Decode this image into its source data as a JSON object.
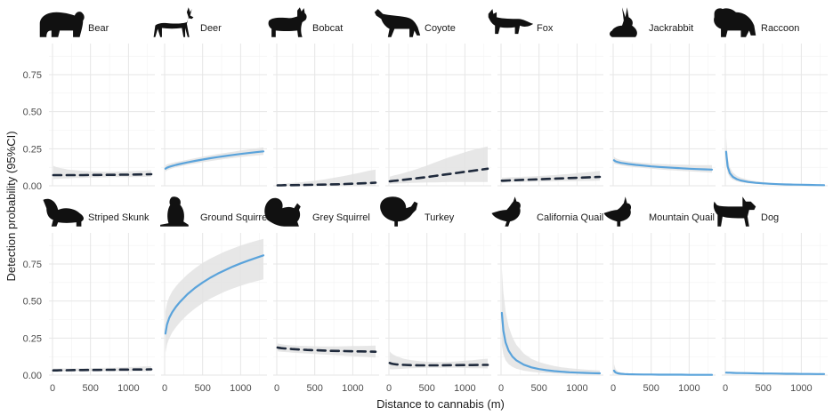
{
  "chart_data": {
    "type": "line",
    "xlabel": "Distance to cannabis (m)",
    "ylabel": "Detection probability (95%CI)",
    "xlim": [
      0,
      1300
    ],
    "ylim": [
      0,
      0.96
    ],
    "x_ticks": [
      "0",
      "500",
      "1000"
    ],
    "x_tick_values": [
      0,
      500,
      1000
    ],
    "y_ticks": [
      "0.00",
      "0.25",
      "0.50",
      "0.75"
    ],
    "y_tick_values": [
      0,
      0.25,
      0.5,
      0.75
    ],
    "grid": true,
    "colors": {
      "significant": "#5aa3db",
      "nonsignificant": "#1f2a3c",
      "ribbon": "#e3e3e3"
    },
    "x": [
      10,
      30,
      60,
      100,
      150,
      200,
      300,
      400,
      500,
      600,
      700,
      800,
      900,
      1000,
      1100,
      1200,
      1300
    ],
    "panels": [
      {
        "name": "Bear",
        "icon": "bear-silhouette-icon",
        "style": "dashed",
        "color": "#1f2a3c",
        "y": [
          0.072,
          0.072,
          0.072,
          0.072,
          0.072,
          0.072,
          0.072,
          0.072,
          0.073,
          0.073,
          0.074,
          0.074,
          0.075,
          0.075,
          0.076,
          0.077,
          0.078
        ],
        "lower": [
          0.045,
          0.046,
          0.047,
          0.048,
          0.049,
          0.05,
          0.052,
          0.053,
          0.055,
          0.056,
          0.057,
          0.058,
          0.058,
          0.059,
          0.059,
          0.06,
          0.06
        ],
        "upper": [
          0.135,
          0.13,
          0.125,
          0.12,
          0.115,
          0.11,
          0.105,
          0.1,
          0.098,
          0.096,
          0.095,
          0.095,
          0.096,
          0.098,
          0.1,
          0.102,
          0.105
        ]
      },
      {
        "name": "Deer",
        "icon": "deer-silhouette-icon",
        "style": "solid",
        "color": "#5aa3db",
        "y": [
          0.115,
          0.122,
          0.128,
          0.134,
          0.141,
          0.147,
          0.158,
          0.168,
          0.177,
          0.186,
          0.194,
          0.201,
          0.208,
          0.215,
          0.221,
          0.227,
          0.232
        ],
        "lower": [
          0.095,
          0.103,
          0.11,
          0.117,
          0.124,
          0.13,
          0.141,
          0.15,
          0.159,
          0.167,
          0.174,
          0.181,
          0.187,
          0.193,
          0.199,
          0.204,
          0.209
        ],
        "upper": [
          0.138,
          0.144,
          0.149,
          0.154,
          0.16,
          0.165,
          0.176,
          0.186,
          0.196,
          0.205,
          0.214,
          0.222,
          0.23,
          0.238,
          0.245,
          0.252,
          0.259
        ]
      },
      {
        "name": "Bobcat",
        "icon": "bobcat-silhouette-icon",
        "style": "dashed",
        "color": "#1f2a3c",
        "y": [
          0.003,
          0.003,
          0.003,
          0.004,
          0.004,
          0.004,
          0.005,
          0.006,
          0.007,
          0.008,
          0.009,
          0.01,
          0.012,
          0.014,
          0.016,
          0.018,
          0.021
        ],
        "lower": [
          0.0,
          0.0,
          0.0,
          0.0,
          0.0,
          0.0,
          0.0,
          0.0,
          0.0,
          0.0,
          0.0,
          0.0,
          0.0,
          0.0,
          0.0,
          0.0,
          0.0
        ],
        "upper": [
          0.012,
          0.013,
          0.014,
          0.015,
          0.017,
          0.019,
          0.023,
          0.028,
          0.034,
          0.041,
          0.049,
          0.058,
          0.068,
          0.078,
          0.089,
          0.1,
          0.11
        ]
      },
      {
        "name": "Coyote",
        "icon": "coyote-silhouette-icon",
        "style": "dashed",
        "color": "#1f2a3c",
        "y": [
          0.03,
          0.031,
          0.033,
          0.035,
          0.038,
          0.041,
          0.047,
          0.053,
          0.059,
          0.066,
          0.073,
          0.08,
          0.087,
          0.094,
          0.101,
          0.108,
          0.115
        ],
        "lower": [
          0.012,
          0.013,
          0.014,
          0.015,
          0.016,
          0.017,
          0.019,
          0.021,
          0.022,
          0.023,
          0.024,
          0.025,
          0.025,
          0.026,
          0.026,
          0.026,
          0.026
        ],
        "upper": [
          0.062,
          0.065,
          0.069,
          0.074,
          0.08,
          0.087,
          0.102,
          0.119,
          0.137,
          0.156,
          0.175,
          0.193,
          0.21,
          0.226,
          0.241,
          0.254,
          0.266
        ]
      },
      {
        "name": "Fox",
        "icon": "fox-silhouette-icon",
        "style": "dashed",
        "color": "#1f2a3c",
        "y": [
          0.034,
          0.034,
          0.035,
          0.036,
          0.037,
          0.038,
          0.04,
          0.042,
          0.044,
          0.046,
          0.048,
          0.05,
          0.052,
          0.054,
          0.056,
          0.058,
          0.06
        ],
        "lower": [
          0.02,
          0.021,
          0.022,
          0.023,
          0.024,
          0.025,
          0.026,
          0.027,
          0.028,
          0.029,
          0.03,
          0.031,
          0.032,
          0.032,
          0.033,
          0.033,
          0.034
        ],
        "upper": [
          0.055,
          0.055,
          0.056,
          0.057,
          0.058,
          0.059,
          0.061,
          0.063,
          0.066,
          0.069,
          0.072,
          0.076,
          0.08,
          0.085,
          0.09,
          0.095,
          0.1
        ]
      },
      {
        "name": "Jackrabbit",
        "icon": "jackrabbit-silhouette-icon",
        "style": "solid",
        "color": "#5aa3db",
        "y": [
          0.172,
          0.165,
          0.16,
          0.155,
          0.151,
          0.147,
          0.141,
          0.136,
          0.131,
          0.127,
          0.124,
          0.121,
          0.118,
          0.115,
          0.113,
          0.111,
          0.109
        ],
        "lower": [
          0.15,
          0.146,
          0.142,
          0.138,
          0.134,
          0.131,
          0.125,
          0.12,
          0.115,
          0.111,
          0.107,
          0.103,
          0.1,
          0.097,
          0.094,
          0.091,
          0.088
        ],
        "upper": [
          0.196,
          0.187,
          0.18,
          0.174,
          0.169,
          0.165,
          0.159,
          0.154,
          0.15,
          0.147,
          0.145,
          0.143,
          0.142,
          0.141,
          0.14,
          0.14,
          0.14
        ]
      },
      {
        "name": "Raccoon",
        "icon": "raccoon-silhouette-icon",
        "style": "solid",
        "color": "#5aa3db",
        "y": [
          0.23,
          0.13,
          0.085,
          0.06,
          0.045,
          0.036,
          0.026,
          0.02,
          0.016,
          0.013,
          0.011,
          0.009,
          0.008,
          0.007,
          0.006,
          0.005,
          0.004
        ],
        "lower": [
          0.15,
          0.085,
          0.057,
          0.04,
          0.03,
          0.024,
          0.017,
          0.013,
          0.01,
          0.008,
          0.007,
          0.006,
          0.005,
          0.004,
          0.004,
          0.003,
          0.003
        ],
        "upper": [
          0.33,
          0.19,
          0.125,
          0.09,
          0.068,
          0.055,
          0.04,
          0.031,
          0.025,
          0.02,
          0.017,
          0.014,
          0.012,
          0.011,
          0.009,
          0.008,
          0.007
        ]
      },
      {
        "name": "Striped Skunk",
        "icon": "striped-skunk-silhouette-icon",
        "style": "dashed",
        "color": "#1f2a3c",
        "y": [
          0.032,
          0.032,
          0.032,
          0.033,
          0.033,
          0.033,
          0.034,
          0.034,
          0.035,
          0.035,
          0.036,
          0.036,
          0.037,
          0.037,
          0.038,
          0.038,
          0.039
        ],
        "lower": [
          0.022,
          0.022,
          0.023,
          0.023,
          0.024,
          0.024,
          0.025,
          0.025,
          0.026,
          0.026,
          0.026,
          0.026,
          0.026,
          0.026,
          0.026,
          0.026,
          0.026
        ],
        "upper": [
          0.045,
          0.045,
          0.045,
          0.045,
          0.045,
          0.045,
          0.045,
          0.046,
          0.047,
          0.048,
          0.049,
          0.05,
          0.052,
          0.054,
          0.056,
          0.058,
          0.06
        ]
      },
      {
        "name": "Ground Squirrel",
        "icon": "ground-squirrel-silhouette-icon",
        "style": "solid",
        "color": "#5aa3db",
        "y": [
          0.28,
          0.34,
          0.385,
          0.425,
          0.462,
          0.493,
          0.546,
          0.589,
          0.625,
          0.657,
          0.685,
          0.71,
          0.733,
          0.754,
          0.773,
          0.791,
          0.808
        ],
        "lower": [
          0.15,
          0.205,
          0.248,
          0.288,
          0.324,
          0.355,
          0.408,
          0.45,
          0.486,
          0.516,
          0.542,
          0.565,
          0.585,
          0.603,
          0.619,
          0.633,
          0.646
        ],
        "upper": [
          0.43,
          0.485,
          0.527,
          0.565,
          0.6,
          0.63,
          0.68,
          0.722,
          0.757,
          0.786,
          0.812,
          0.835,
          0.855,
          0.874,
          0.891,
          0.906,
          0.92
        ]
      },
      {
        "name": "Grey Squirrel",
        "icon": "grey-squirrel-silhouette-icon",
        "style": "dashed",
        "color": "#1f2a3c",
        "y": [
          0.186,
          0.184,
          0.182,
          0.18,
          0.178,
          0.176,
          0.173,
          0.17,
          0.168,
          0.166,
          0.164,
          0.163,
          0.162,
          0.161,
          0.16,
          0.159,
          0.158
        ],
        "lower": [
          0.16,
          0.159,
          0.158,
          0.156,
          0.154,
          0.152,
          0.149,
          0.146,
          0.143,
          0.14,
          0.137,
          0.134,
          0.131,
          0.128,
          0.125,
          0.122,
          0.119
        ],
        "upper": [
          0.215,
          0.212,
          0.209,
          0.206,
          0.203,
          0.201,
          0.198,
          0.196,
          0.195,
          0.194,
          0.194,
          0.194,
          0.195,
          0.196,
          0.197,
          0.198,
          0.199
        ]
      },
      {
        "name": "Turkey",
        "icon": "turkey-silhouette-icon",
        "style": "dashed",
        "color": "#1f2a3c",
        "y": [
          0.082,
          0.078,
          0.075,
          0.072,
          0.07,
          0.069,
          0.067,
          0.066,
          0.066,
          0.066,
          0.066,
          0.067,
          0.067,
          0.068,
          0.068,
          0.069,
          0.069
        ],
        "lower": [
          0.04,
          0.039,
          0.039,
          0.04,
          0.042,
          0.044,
          0.046,
          0.048,
          0.049,
          0.05,
          0.05,
          0.05,
          0.049,
          0.048,
          0.047,
          0.046,
          0.045
        ],
        "upper": [
          0.16,
          0.148,
          0.138,
          0.128,
          0.118,
          0.11,
          0.1,
          0.094,
          0.09,
          0.088,
          0.088,
          0.09,
          0.093,
          0.097,
          0.101,
          0.106,
          0.111
        ]
      },
      {
        "name": "California Quail",
        "icon": "california-quail-silhouette-icon",
        "style": "solid",
        "color": "#5aa3db",
        "y": [
          0.42,
          0.3,
          0.22,
          0.165,
          0.125,
          0.1,
          0.07,
          0.052,
          0.041,
          0.033,
          0.027,
          0.023,
          0.019,
          0.017,
          0.015,
          0.013,
          0.012
        ],
        "lower": [
          0.2,
          0.14,
          0.1,
          0.074,
          0.055,
          0.044,
          0.03,
          0.022,
          0.017,
          0.014,
          0.011,
          0.009,
          0.008,
          0.007,
          0.006,
          0.005,
          0.004
        ],
        "upper": [
          0.72,
          0.56,
          0.43,
          0.33,
          0.255,
          0.205,
          0.145,
          0.11,
          0.088,
          0.073,
          0.062,
          0.053,
          0.047,
          0.042,
          0.038,
          0.035,
          0.032
        ]
      },
      {
        "name": "Mountain Quail",
        "icon": "mountain-quail-silhouette-icon",
        "style": "solid",
        "color": "#5aa3db",
        "y": [
          0.03,
          0.018,
          0.012,
          0.009,
          0.007,
          0.006,
          0.005,
          0.004,
          0.004,
          0.003,
          0.003,
          0.003,
          0.003,
          0.002,
          0.002,
          0.002,
          0.002
        ],
        "lower": [
          0.012,
          0.008,
          0.006,
          0.005,
          0.004,
          0.003,
          0.003,
          0.002,
          0.002,
          0.002,
          0.002,
          0.001,
          0.001,
          0.001,
          0.001,
          0.001,
          0.001
        ],
        "upper": [
          0.075,
          0.042,
          0.026,
          0.018,
          0.014,
          0.012,
          0.009,
          0.008,
          0.007,
          0.006,
          0.006,
          0.005,
          0.005,
          0.005,
          0.004,
          0.004,
          0.004
        ]
      },
      {
        "name": "Dog",
        "icon": "dog-silhouette-icon",
        "style": "solid",
        "color": "#5aa3db",
        "y": [
          0.017,
          0.016,
          0.016,
          0.015,
          0.014,
          0.014,
          0.013,
          0.012,
          0.011,
          0.011,
          0.01,
          0.009,
          0.009,
          0.008,
          0.008,
          0.007,
          0.007
        ],
        "lower": [
          0.011,
          0.011,
          0.011,
          0.01,
          0.01,
          0.01,
          0.009,
          0.008,
          0.008,
          0.007,
          0.007,
          0.006,
          0.006,
          0.005,
          0.005,
          0.004,
          0.004
        ],
        "upper": [
          0.026,
          0.025,
          0.024,
          0.023,
          0.022,
          0.021,
          0.019,
          0.018,
          0.016,
          0.015,
          0.014,
          0.013,
          0.013,
          0.012,
          0.012,
          0.011,
          0.011
        ]
      }
    ]
  }
}
